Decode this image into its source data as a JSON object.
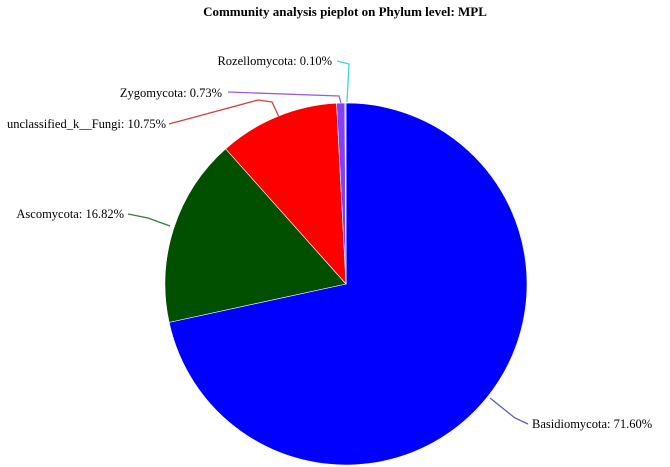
{
  "chart_data": {
    "type": "pie",
    "title": "Community analysis pieplot on Phylum level: MPL",
    "slices": [
      {
        "name": "Basidiomycota",
        "value": 71.6,
        "label": "Basidiomycota: 71.60%",
        "color": "#0000ff",
        "leader_color": "#5b5bb8"
      },
      {
        "name": "Ascomycota",
        "value": 16.82,
        "label": "Ascomycota: 16.82%",
        "color": "#005000",
        "leader_color": "#3d7a3d"
      },
      {
        "name": "unclassified_k__Fungi",
        "value": 10.75,
        "label": "unclassified_k__Fungi: 10.75%",
        "color": "#ff0000",
        "leader_color": "#d24040"
      },
      {
        "name": "Zygomycota",
        "value": 0.73,
        "label": "Zygomycota: 0.73%",
        "color": "#8040ff",
        "leader_color": "#9a5fd6"
      },
      {
        "name": "Rozellomycota",
        "value": 0.1,
        "label": "Rozellomycota: 0.10%",
        "color": "#40e0ff",
        "leader_color": "#40d8e8"
      }
    ]
  }
}
